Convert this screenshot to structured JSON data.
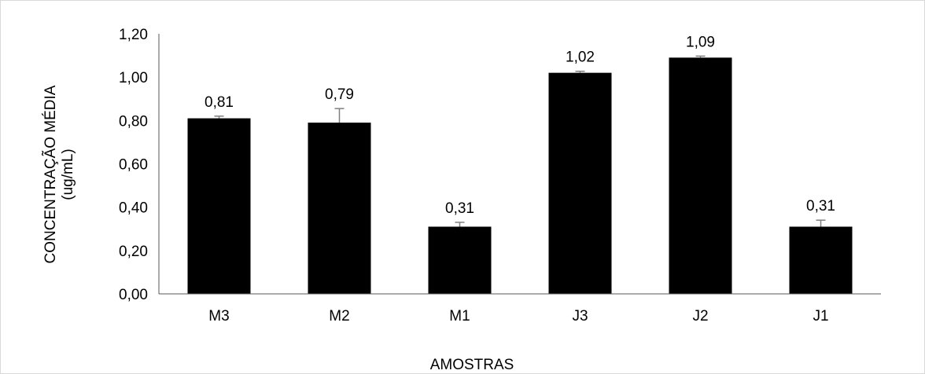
{
  "chart_data": {
    "type": "bar",
    "categories": [
      "M3",
      "M2",
      "M1",
      "J3",
      "J2",
      "J1"
    ],
    "values": [
      0.81,
      0.79,
      0.31,
      1.02,
      1.09,
      0.31
    ],
    "errors": [
      0.01,
      0.065,
      0.02,
      0.007,
      0.007,
      0.03
    ],
    "data_labels": [
      "0,81",
      "0,79",
      "0,31",
      "1,02",
      "1,09",
      "0,31"
    ],
    "y_ticks": [
      "0,00",
      "0,20",
      "0,40",
      "0,60",
      "0,80",
      "1,00",
      "1,20"
    ],
    "ylim": [
      0,
      1.2
    ],
    "xlabel": "AMOSTRAS",
    "ylabel_line1": "CONCENTRAÇÃO MÉDIA",
    "ylabel_line2": "(ug/mL)",
    "grid": false,
    "legend": "none",
    "bar_color": "#000000",
    "error_bar_color": "#7f7f7f"
  }
}
